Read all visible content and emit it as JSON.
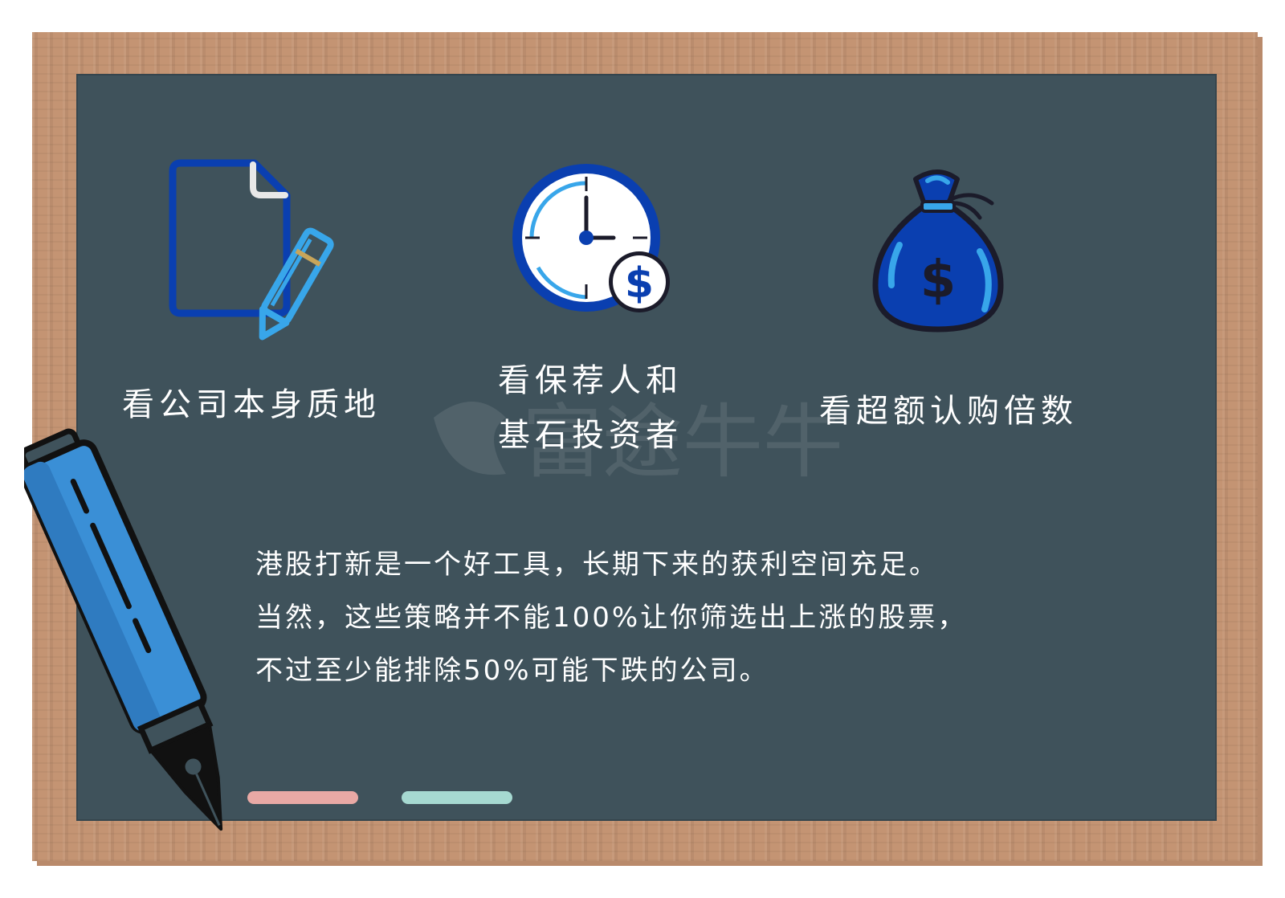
{
  "watermark": {
    "text": "富途牛牛"
  },
  "items": [
    {
      "caption": "看公司本身质地",
      "icon": "document-pencil-icon"
    },
    {
      "caption_lines": [
        "看保荐人和",
        "基石投资者"
      ],
      "icon": "clock-dollar-icon"
    },
    {
      "caption": "看超额认购倍数",
      "icon": "money-bag-icon"
    }
  ],
  "summary": {
    "lines": [
      "港股打新是一个好工具，长期下来的获利空间充足。",
      "当然，这些策略并不能100%让你筛选出上涨的股票，",
      "不过至少能排除50%可能下跌的公司。"
    ]
  },
  "colors": {
    "board": "#3f525b",
    "frame": "#c49473",
    "icon_dark_blue": "#0a3fb0",
    "icon_light_blue": "#38a6ea",
    "chalk_pink": "#e9a9a5",
    "chalk_mint": "#a6d9d1"
  }
}
